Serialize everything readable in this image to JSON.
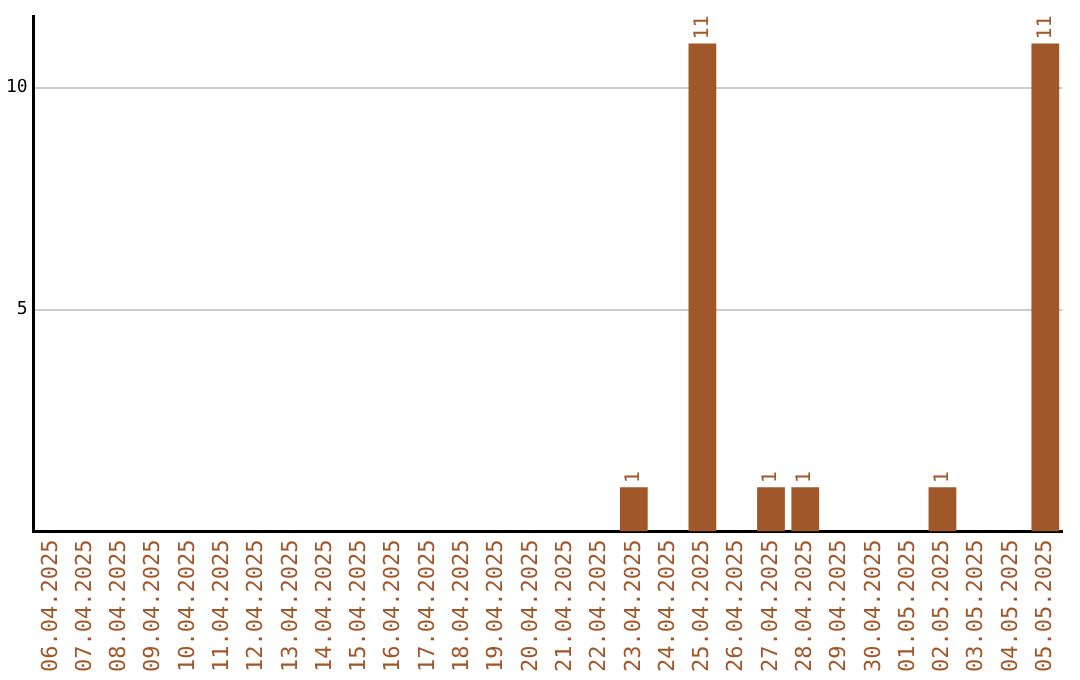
{
  "chart_data": {
    "type": "bar",
    "categories": [
      "06.04.2025",
      "07.04.2025",
      "08.04.2025",
      "09.04.2025",
      "10.04.2025",
      "11.04.2025",
      "12.04.2025",
      "13.04.2025",
      "14.04.2025",
      "15.04.2025",
      "16.04.2025",
      "17.04.2025",
      "18.04.2025",
      "19.04.2025",
      "20.04.2025",
      "21.04.2025",
      "22.04.2025",
      "23.04.2025",
      "24.04.2025",
      "25.04.2025",
      "26.04.2025",
      "27.04.2025",
      "28.04.2025",
      "29.04.2025",
      "30.04.2025",
      "01.05.2025",
      "02.05.2025",
      "03.05.2025",
      "04.05.2025",
      "05.05.2025"
    ],
    "values": [
      0,
      0,
      0,
      0,
      0,
      0,
      0,
      0,
      0,
      0,
      0,
      0,
      0,
      0,
      0,
      0,
      0,
      1,
      0,
      11,
      0,
      1,
      1,
      0,
      0,
      0,
      1,
      0,
      0,
      11
    ],
    "value_labels": [
      null,
      null,
      null,
      null,
      null,
      null,
      null,
      null,
      null,
      null,
      null,
      null,
      null,
      null,
      null,
      null,
      null,
      "1",
      null,
      "11",
      null,
      "1",
      "1",
      null,
      null,
      null,
      "1",
      null,
      null,
      "11"
    ],
    "color": "#a0572a",
    "ylim": [
      0,
      11.6
    ],
    "yticks": [
      5,
      10
    ],
    "grid": "y",
    "legend": false
  }
}
